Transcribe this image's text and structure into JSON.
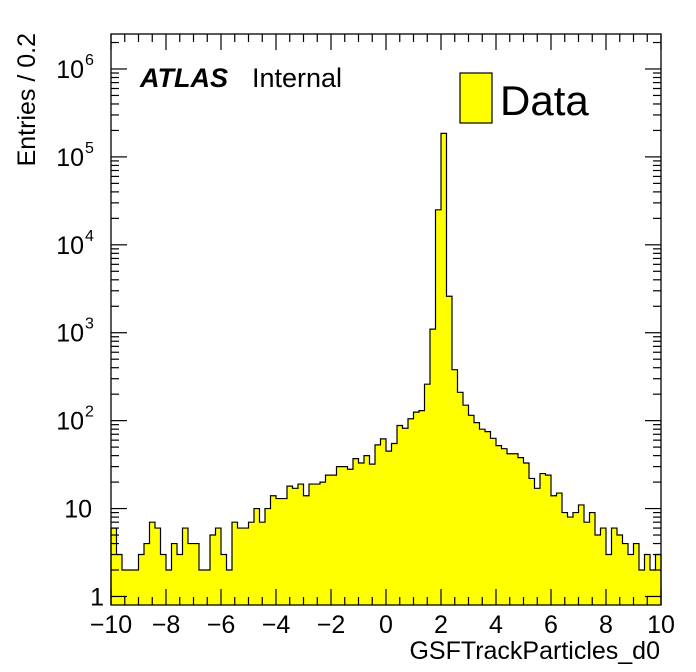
{
  "chart_data": {
    "type": "bar",
    "title": "",
    "xlabel": "GSFTrackParticles_d0",
    "ylabel": "Entries / 0.2",
    "x_range": [
      -10,
      10
    ],
    "ylim": [
      0.8,
      2500000
    ],
    "y_scale": "log",
    "bin_width": 0.2,
    "x_ticks": [
      "−10",
      "−8",
      "−6",
      "−4",
      "−2",
      "0",
      "2",
      "4",
      "6",
      "8",
      "10"
    ],
    "y_ticks": [
      {
        "value": 1,
        "base": "1",
        "exp": ""
      },
      {
        "value": 10,
        "base": "10",
        "exp": ""
      },
      {
        "value": 100,
        "base": "10",
        "exp": "2"
      },
      {
        "value": 1000,
        "base": "10",
        "exp": "3"
      },
      {
        "value": 10000,
        "base": "10",
        "exp": "4"
      },
      {
        "value": 100000,
        "base": "10",
        "exp": "5"
      },
      {
        "value": 1000000,
        "base": "10",
        "exp": "6"
      }
    ],
    "grid": false,
    "legend_position": "top-right",
    "annotation": {
      "experiment": "ATLAS",
      "status": "Internal"
    },
    "series": [
      {
        "name": "Data",
        "color": "#ffff00",
        "edge_color": "#000000",
        "bin_edges_start": -10,
        "values": [
          6,
          3,
          2,
          2,
          2,
          3,
          4,
          7,
          6,
          3,
          2,
          4,
          3,
          6,
          4,
          4,
          2,
          2,
          5,
          6,
          3,
          2,
          7,
          6,
          6,
          7,
          10,
          7,
          10,
          14,
          13,
          13,
          18,
          17,
          19,
          14,
          19,
          19,
          20,
          24,
          24,
          30,
          30,
          28,
          37,
          33,
          40,
          32,
          53,
          62,
          45,
          55,
          88,
          82,
          105,
          125,
          130,
          260,
          1100,
          25000,
          185000,
          2600,
          380,
          210,
          150,
          115,
          95,
          80,
          75,
          63,
          52,
          48,
          42,
          42,
          38,
          33,
          22,
          17,
          25,
          24,
          14,
          15,
          9,
          8,
          9,
          11,
          7,
          9,
          5,
          6,
          3,
          6,
          5,
          4,
          3,
          4,
          2,
          3,
          2,
          3
        ]
      }
    ]
  },
  "legend": {
    "label": "Data"
  },
  "atlas_label": {
    "bold": "ATLAS",
    "normal": "Internal"
  }
}
